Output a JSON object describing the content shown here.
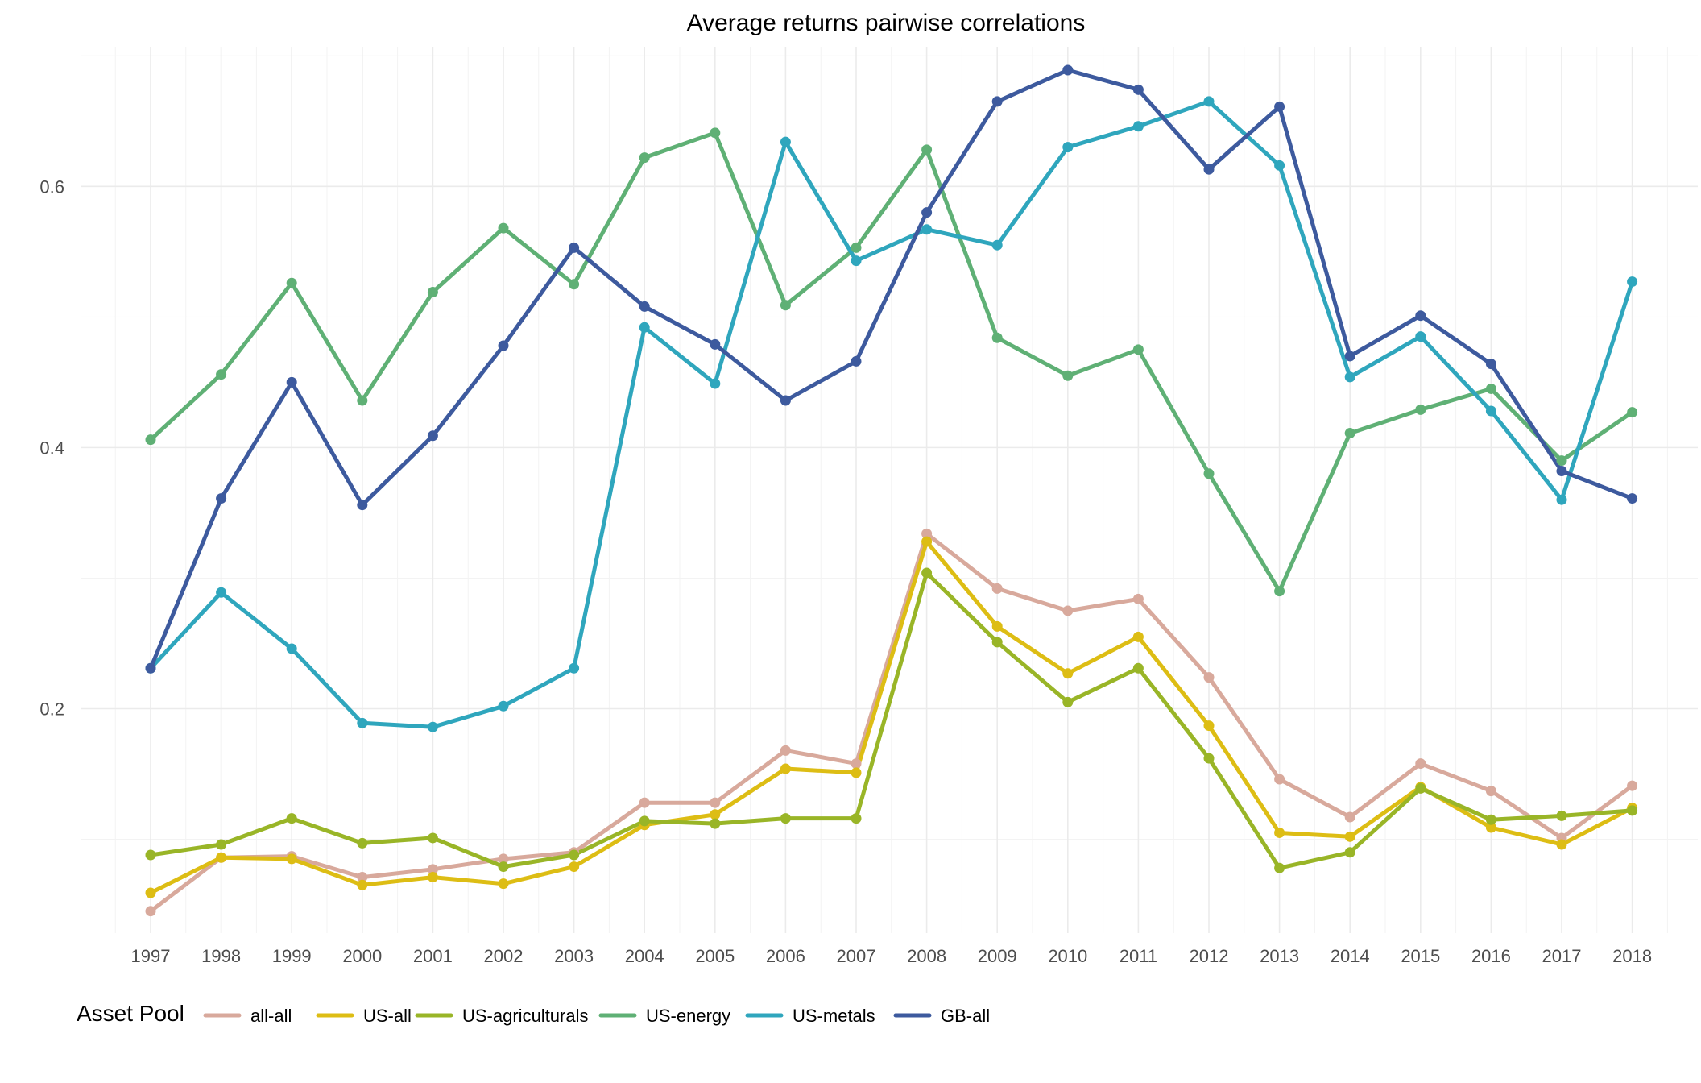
{
  "chart_data": {
    "type": "line",
    "title": "Average returns pairwise correlations",
    "xlabel": "",
    "ylabel": "",
    "x": [
      1997,
      1998,
      1999,
      2000,
      2001,
      2002,
      2003,
      2004,
      2005,
      2006,
      2007,
      2008,
      2009,
      2010,
      2011,
      2012,
      2013,
      2014,
      2015,
      2016,
      2017,
      2018
    ],
    "ylim": [
      0.03,
      0.71
    ],
    "yticks": [
      0.2,
      0.4,
      0.6
    ],
    "ytick_labels": [
      "0.2",
      "0.4",
      "0.6"
    ],
    "grid": true,
    "legend": {
      "title": "Asset Pool",
      "placement": "bottom-left"
    },
    "series": [
      {
        "name": "all-all",
        "color": "#d8a99c",
        "values": [
          0.045,
          0.086,
          0.087,
          0.071,
          0.077,
          0.085,
          0.09,
          0.128,
          0.128,
          0.168,
          0.158,
          0.334,
          0.292,
          0.275,
          0.284,
          0.224,
          0.146,
          0.117,
          0.158,
          0.137,
          0.101,
          0.141
        ]
      },
      {
        "name": "US-all",
        "color": "#ddbd14",
        "values": [
          0.059,
          0.086,
          0.085,
          0.065,
          0.071,
          0.066,
          0.079,
          0.111,
          0.119,
          0.154,
          0.151,
          0.328,
          0.263,
          0.227,
          0.255,
          0.187,
          0.105,
          0.102,
          0.14,
          0.109,
          0.096,
          0.124
        ]
      },
      {
        "name": "US-agriculturals",
        "color": "#99b527",
        "values": [
          0.088,
          0.096,
          0.116,
          0.097,
          0.101,
          0.079,
          0.088,
          0.114,
          0.112,
          0.116,
          0.116,
          0.304,
          0.251,
          0.205,
          0.231,
          0.162,
          0.078,
          0.09,
          0.139,
          0.115,
          0.118,
          0.122
        ]
      },
      {
        "name": "US-energy",
        "color": "#5fb075",
        "values": [
          0.406,
          0.456,
          0.526,
          0.436,
          0.519,
          0.568,
          0.525,
          0.622,
          0.641,
          0.509,
          0.553,
          0.628,
          0.484,
          0.455,
          0.475,
          0.38,
          0.29,
          0.411,
          0.429,
          0.445,
          0.39,
          0.427
        ]
      },
      {
        "name": "US-metals",
        "color": "#2fa6bd",
        "values": [
          0.231,
          0.289,
          0.246,
          0.189,
          0.186,
          0.202,
          0.231,
          0.492,
          0.449,
          0.634,
          0.543,
          0.567,
          0.555,
          0.63,
          0.646,
          0.665,
          0.616,
          0.454,
          0.485,
          0.428,
          0.36,
          0.527
        ]
      },
      {
        "name": "GB-all",
        "color": "#3d5a9e",
        "values": [
          0.231,
          0.361,
          0.45,
          0.356,
          0.409,
          0.478,
          0.553,
          0.508,
          0.479,
          0.436,
          0.466,
          0.58,
          0.665,
          0.689,
          0.674,
          0.613,
          0.661,
          0.47,
          0.501,
          0.464,
          0.382,
          0.361
        ]
      }
    ]
  }
}
